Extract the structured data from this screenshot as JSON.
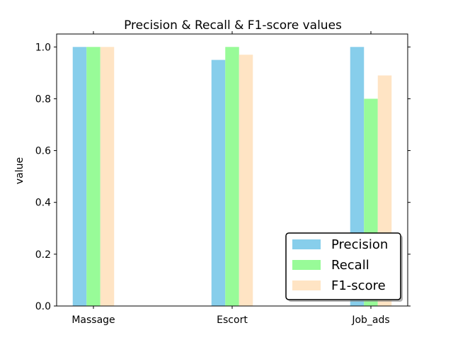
{
  "chart_data": {
    "type": "bar",
    "title": "Precision & Recall & F1-score values",
    "xlabel": "",
    "ylabel": "value",
    "categories": [
      "Massage",
      "Escort",
      "Job_ads"
    ],
    "series": [
      {
        "name": "Precision",
        "color": "#87ceeb",
        "values": [
          1.0,
          0.95,
          1.0
        ]
      },
      {
        "name": "Recall",
        "color": "#98fb98",
        "values": [
          1.0,
          1.0,
          0.8
        ]
      },
      {
        "name": "F1-score",
        "color": "#ffe4c4",
        "values": [
          1.0,
          0.97,
          0.89
        ]
      }
    ],
    "ylim": [
      0,
      1.05
    ],
    "yticks": [
      "0.0",
      "0.2",
      "0.4",
      "0.6",
      "0.8",
      "1.0"
    ],
    "grid": false,
    "legend_position": "lower-right"
  }
}
